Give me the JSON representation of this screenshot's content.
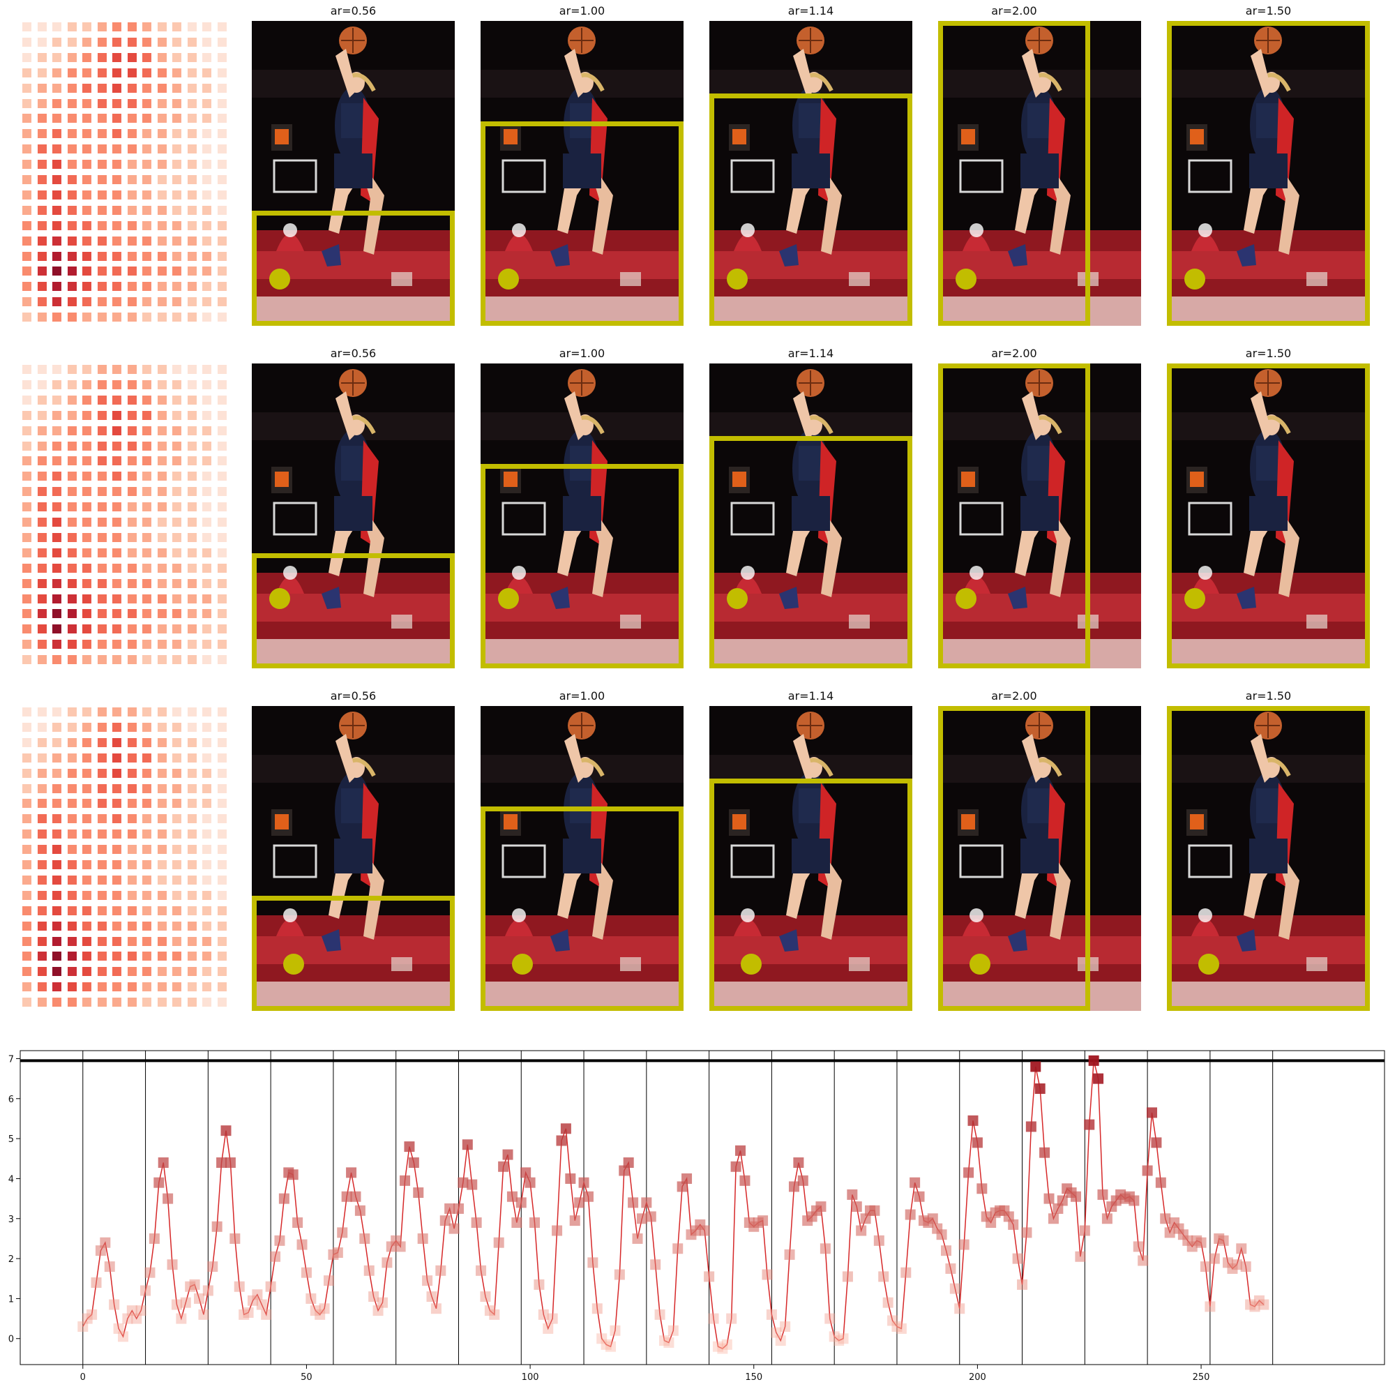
{
  "rows": [
    {
      "heatmap": [
        [
          1,
          1,
          1,
          2,
          2,
          3,
          4,
          4,
          3,
          2,
          2,
          1,
          1,
          1
        ],
        [
          1,
          1,
          2,
          2,
          3,
          4,
          5,
          5,
          4,
          3,
          2,
          2,
          1,
          1
        ],
        [
          1,
          2,
          2,
          3,
          4,
          5,
          6,
          6,
          5,
          3,
          2,
          2,
          1,
          1
        ],
        [
          2,
          2,
          3,
          4,
          4,
          5,
          6,
          6,
          5,
          4,
          3,
          2,
          2,
          1
        ],
        [
          2,
          3,
          3,
          4,
          5,
          5,
          6,
          5,
          4,
          4,
          3,
          2,
          2,
          1
        ],
        [
          2,
          3,
          4,
          4,
          4,
          5,
          5,
          5,
          4,
          3,
          3,
          2,
          2,
          1
        ],
        [
          3,
          4,
          4,
          4,
          4,
          4,
          5,
          4,
          4,
          3,
          3,
          2,
          2,
          1
        ],
        [
          3,
          4,
          5,
          4,
          4,
          4,
          5,
          4,
          3,
          3,
          2,
          2,
          1,
          1
        ],
        [
          3,
          5,
          5,
          4,
          4,
          4,
          4,
          4,
          3,
          3,
          2,
          2,
          1,
          1
        ],
        [
          3,
          5,
          6,
          4,
          4,
          4,
          4,
          3,
          3,
          3,
          2,
          2,
          1,
          1
        ],
        [
          3,
          5,
          6,
          5,
          4,
          4,
          4,
          3,
          3,
          2,
          2,
          2,
          1,
          1
        ],
        [
          3,
          5,
          6,
          5,
          4,
          4,
          4,
          3,
          3,
          2,
          2,
          2,
          1,
          1
        ],
        [
          3,
          5,
          6,
          5,
          4,
          4,
          4,
          3,
          3,
          3,
          2,
          2,
          2,
          1
        ],
        [
          4,
          5,
          6,
          5,
          5,
          4,
          4,
          4,
          3,
          3,
          3,
          2,
          2,
          2
        ],
        [
          4,
          6,
          7,
          6,
          5,
          5,
          4,
          4,
          4,
          3,
          3,
          3,
          2,
          2
        ],
        [
          4,
          6,
          8,
          7,
          6,
          5,
          5,
          4,
          4,
          4,
          3,
          3,
          3,
          2
        ],
        [
          4,
          7,
          9,
          8,
          6,
          5,
          5,
          5,
          4,
          4,
          4,
          3,
          3,
          2
        ],
        [
          4,
          6,
          8,
          7,
          6,
          5,
          5,
          4,
          4,
          3,
          3,
          3,
          2,
          2
        ],
        [
          3,
          5,
          7,
          6,
          5,
          4,
          4,
          4,
          3,
          3,
          3,
          2,
          2,
          2
        ],
        [
          2,
          3,
          4,
          4,
          3,
          3,
          3,
          3,
          2,
          2,
          2,
          2,
          1,
          1
        ]
      ],
      "panels": [
        {
          "title": "ar=0.56"
        },
        {
          "title": "ar=1.00"
        },
        {
          "title": "ar=1.14"
        },
        {
          "title": "ar=2.00"
        },
        {
          "title": "ar=1.50"
        }
      ]
    },
    {
      "heatmap": [
        [
          1,
          1,
          1,
          2,
          2,
          3,
          3,
          3,
          2,
          2,
          1,
          1,
          1,
          1
        ],
        [
          1,
          1,
          2,
          2,
          3,
          4,
          4,
          4,
          3,
          2,
          2,
          1,
          1,
          1
        ],
        [
          1,
          2,
          2,
          3,
          4,
          5,
          5,
          5,
          4,
          3,
          2,
          2,
          1,
          1
        ],
        [
          2,
          2,
          3,
          3,
          4,
          5,
          6,
          5,
          5,
          3,
          2,
          2,
          1,
          1
        ],
        [
          2,
          3,
          3,
          4,
          4,
          5,
          6,
          5,
          4,
          3,
          3,
          2,
          2,
          1
        ],
        [
          2,
          3,
          4,
          4,
          4,
          5,
          5,
          5,
          4,
          3,
          3,
          2,
          2,
          1
        ],
        [
          3,
          4,
          4,
          4,
          4,
          5,
          5,
          4,
          4,
          3,
          3,
          2,
          2,
          1
        ],
        [
          3,
          4,
          5,
          4,
          4,
          4,
          5,
          4,
          3,
          3,
          2,
          2,
          1,
          1
        ],
        [
          3,
          5,
          5,
          4,
          4,
          4,
          4,
          4,
          3,
          3,
          2,
          2,
          1,
          1
        ],
        [
          3,
          5,
          5,
          4,
          4,
          4,
          4,
          3,
          3,
          3,
          2,
          2,
          1,
          1
        ],
        [
          3,
          5,
          6,
          4,
          4,
          4,
          4,
          3,
          3,
          2,
          2,
          2,
          1,
          1
        ],
        [
          3,
          5,
          6,
          5,
          4,
          4,
          4,
          3,
          3,
          2,
          2,
          2,
          1,
          1
        ],
        [
          3,
          5,
          6,
          5,
          4,
          4,
          4,
          3,
          3,
          3,
          2,
          2,
          2,
          1
        ],
        [
          4,
          5,
          6,
          5,
          5,
          4,
          4,
          4,
          3,
          3,
          3,
          2,
          2,
          2
        ],
        [
          4,
          6,
          7,
          6,
          5,
          5,
          4,
          4,
          4,
          3,
          3,
          3,
          2,
          2
        ],
        [
          4,
          6,
          8,
          7,
          6,
          5,
          5,
          4,
          4,
          4,
          3,
          3,
          3,
          2
        ],
        [
          4,
          7,
          9,
          8,
          6,
          5,
          5,
          5,
          4,
          4,
          4,
          3,
          3,
          2
        ],
        [
          4,
          6,
          9,
          7,
          6,
          5,
          5,
          4,
          4,
          3,
          3,
          3,
          2,
          2
        ],
        [
          3,
          5,
          7,
          6,
          5,
          4,
          4,
          4,
          3,
          3,
          3,
          2,
          2,
          2
        ],
        [
          2,
          3,
          4,
          4,
          3,
          3,
          3,
          3,
          2,
          2,
          2,
          2,
          1,
          1
        ]
      ],
      "panels": [
        {
          "title": "ar=0.56"
        },
        {
          "title": "ar=1.00"
        },
        {
          "title": "ar=1.14"
        },
        {
          "title": "ar=2.00"
        },
        {
          "title": "ar=1.50"
        }
      ]
    },
    {
      "heatmap": [
        [
          1,
          1,
          1,
          2,
          2,
          3,
          3,
          3,
          2,
          2,
          1,
          1,
          1,
          1
        ],
        [
          1,
          1,
          2,
          2,
          3,
          4,
          5,
          4,
          3,
          2,
          2,
          1,
          1,
          1
        ],
        [
          1,
          2,
          2,
          3,
          4,
          5,
          6,
          5,
          4,
          3,
          2,
          2,
          1,
          1
        ],
        [
          2,
          2,
          3,
          3,
          4,
          5,
          6,
          5,
          5,
          3,
          2,
          2,
          1,
          1
        ],
        [
          2,
          3,
          3,
          4,
          4,
          5,
          6,
          5,
          4,
          3,
          3,
          2,
          2,
          1
        ],
        [
          2,
          3,
          4,
          4,
          4,
          5,
          5,
          5,
          4,
          3,
          3,
          2,
          2,
          1
        ],
        [
          3,
          4,
          4,
          4,
          4,
          5,
          5,
          4,
          4,
          3,
          3,
          2,
          2,
          1
        ],
        [
          3,
          5,
          5,
          4,
          4,
          4,
          5,
          4,
          3,
          3,
          2,
          2,
          1,
          1
        ],
        [
          3,
          5,
          5,
          4,
          4,
          4,
          4,
          4,
          3,
          3,
          2,
          2,
          1,
          1
        ],
        [
          3,
          5,
          6,
          4,
          4,
          4,
          4,
          3,
          3,
          3,
          2,
          2,
          1,
          1
        ],
        [
          3,
          5,
          6,
          5,
          4,
          4,
          4,
          3,
          3,
          2,
          2,
          2,
          1,
          1
        ],
        [
          3,
          5,
          6,
          5,
          4,
          4,
          4,
          3,
          3,
          2,
          2,
          2,
          1,
          1
        ],
        [
          3,
          5,
          6,
          5,
          4,
          4,
          4,
          3,
          3,
          3,
          2,
          2,
          2,
          1
        ],
        [
          4,
          5,
          6,
          5,
          5,
          4,
          4,
          4,
          3,
          3,
          3,
          2,
          2,
          2
        ],
        [
          4,
          6,
          7,
          6,
          5,
          5,
          4,
          4,
          4,
          3,
          3,
          3,
          2,
          2
        ],
        [
          4,
          6,
          8,
          7,
          6,
          5,
          5,
          4,
          4,
          4,
          3,
          3,
          3,
          2
        ],
        [
          4,
          7,
          9,
          8,
          6,
          5,
          5,
          5,
          4,
          4,
          4,
          3,
          3,
          2
        ],
        [
          4,
          6,
          9,
          7,
          6,
          5,
          5,
          4,
          4,
          3,
          3,
          3,
          2,
          2
        ],
        [
          3,
          5,
          7,
          6,
          5,
          4,
          4,
          4,
          3,
          3,
          3,
          2,
          2,
          2
        ],
        [
          2,
          3,
          4,
          4,
          3,
          3,
          3,
          3,
          2,
          2,
          2,
          2,
          1,
          1
        ]
      ],
      "panels": [
        {
          "title": "ar=0.56"
        },
        {
          "title": "ar=1.00"
        },
        {
          "title": "ar=1.14"
        },
        {
          "title": "ar=2.00"
        },
        {
          "title": "ar=1.50"
        }
      ]
    }
  ],
  "colors": {
    "crop_box": "#c2bd00",
    "line": "#d62728",
    "threshold": "#000000"
  },
  "chart_data": {
    "type": "line",
    "x_ticks": [
      0,
      50,
      100,
      150,
      200,
      250
    ],
    "y_ticks": [
      0,
      1,
      2,
      3,
      4,
      5,
      6,
      7
    ],
    "xlim": [
      -14,
      291
    ],
    "ylim": [
      -0.65,
      7.2
    ],
    "threshold": 6.95,
    "separators": [
      14,
      28,
      42,
      56,
      70,
      84,
      98,
      112,
      126,
      140,
      154,
      168,
      182,
      196,
      210,
      224,
      238,
      252,
      266
    ],
    "grid": false,
    "values": [
      0.3,
      0.5,
      0.6,
      1.4,
      2.2,
      2.4,
      1.8,
      0.85,
      0.25,
      0.05,
      0.5,
      0.7,
      0.5,
      0.7,
      1.2,
      1.65,
      2.5,
      3.9,
      4.4,
      3.5,
      1.85,
      0.85,
      0.5,
      0.9,
      1.3,
      1.35,
      1.0,
      0.6,
      1.2,
      1.8,
      2.8,
      4.4,
      5.2,
      4.4,
      2.5,
      1.3,
      0.6,
      0.65,
      0.95,
      1.1,
      0.85,
      0.6,
      1.3,
      2.05,
      2.45,
      3.5,
      4.15,
      4.1,
      2.9,
      2.35,
      1.65,
      1.0,
      0.7,
      0.6,
      0.75,
      1.45,
      2.1,
      2.15,
      2.65,
      3.55,
      4.15,
      3.55,
      3.2,
      2.5,
      1.7,
      1.05,
      0.7,
      0.9,
      1.9,
      2.3,
      2.45,
      2.3,
      3.95,
      4.8,
      4.4,
      3.65,
      2.5,
      1.45,
      1.05,
      0.75,
      1.7,
      2.95,
      3.25,
      2.75,
      3.25,
      3.9,
      4.85,
      3.85,
      2.9,
      1.7,
      1.05,
      0.7,
      0.6,
      2.4,
      4.3,
      4.6,
      3.55,
      2.9,
      3.4,
      4.15,
      3.9,
      2.9,
      1.35,
      0.6,
      0.25,
      0.5,
      2.7,
      4.95,
      5.25,
      4.0,
      2.95,
      3.4,
      3.9,
      3.55,
      1.9,
      0.75,
      0.0,
      -0.15,
      -0.2,
      0.2,
      1.6,
      4.2,
      4.4,
      3.4,
      2.5,
      3.0,
      3.4,
      3.05,
      1.85,
      0.6,
      -0.05,
      -0.1,
      0.2,
      2.25,
      3.8,
      4.0,
      2.6,
      2.7,
      2.85,
      2.7,
      1.55,
      0.5,
      -0.2,
      -0.25,
      -0.15,
      0.5,
      4.3,
      4.7,
      3.95,
      2.9,
      2.8,
      2.9,
      2.95,
      1.6,
      0.6,
      0.15,
      -0.05,
      0.3,
      2.1,
      3.8,
      4.4,
      3.95,
      2.95,
      3.05,
      3.2,
      3.3,
      2.25,
      0.5,
      0.05,
      -0.05,
      0.0,
      1.55,
      3.6,
      3.3,
      2.7,
      3.0,
      3.2,
      3.2,
      2.45,
      1.55,
      0.9,
      0.45,
      0.3,
      0.25,
      1.65,
      3.1,
      3.9,
      3.55,
      2.95,
      2.9,
      3.0,
      2.75,
      2.6,
      2.2,
      1.75,
      1.25,
      0.75,
      2.35,
      4.15,
      5.45,
      4.9,
      3.75,
      3.05,
      2.9,
      3.15,
      3.2,
      3.2,
      3.05,
      2.85,
      2.0,
      1.35,
      2.65,
      5.3,
      6.8,
      6.25,
      4.65,
      3.5,
      3.0,
      3.25,
      3.45,
      3.75,
      3.65,
      3.55,
      2.05,
      2.7,
      5.35,
      6.95,
      6.5,
      3.6,
      3.0,
      3.3,
      3.45,
      3.6,
      3.5,
      3.55,
      3.45,
      2.3,
      1.95,
      4.2,
      5.65,
      4.9,
      3.9,
      3.0,
      2.65,
      2.9,
      2.75,
      2.6,
      2.45,
      2.3,
      2.45,
      2.4,
      1.8,
      0.8,
      2.0,
      2.5,
      2.45,
      1.9,
      1.75,
      1.85,
      2.25,
      1.8,
      0.85,
      0.8,
      0.95,
      0.85
    ]
  }
}
